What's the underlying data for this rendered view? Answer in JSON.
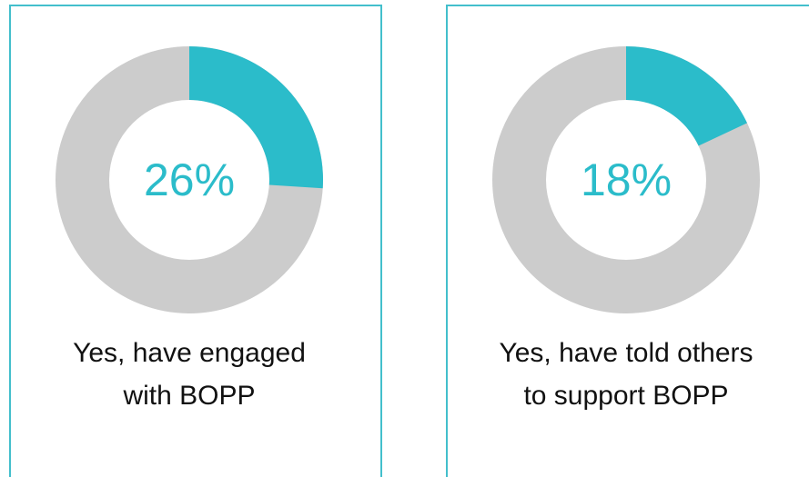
{
  "chart_data": [
    {
      "type": "donut",
      "values": [
        26
      ],
      "value_labels": [
        "26%"
      ],
      "color": "#2bbcca",
      "track_color": "#cccccc",
      "title": [
        "Yes, have engaged",
        "with BOPP"
      ]
    },
    {
      "type": "donut",
      "values": [
        18
      ],
      "value_labels": [
        "18%"
      ],
      "color": "#2bbcca",
      "track_color": "#cccccc",
      "title": [
        "Yes, have told others",
        "to support BOPP"
      ]
    }
  ]
}
